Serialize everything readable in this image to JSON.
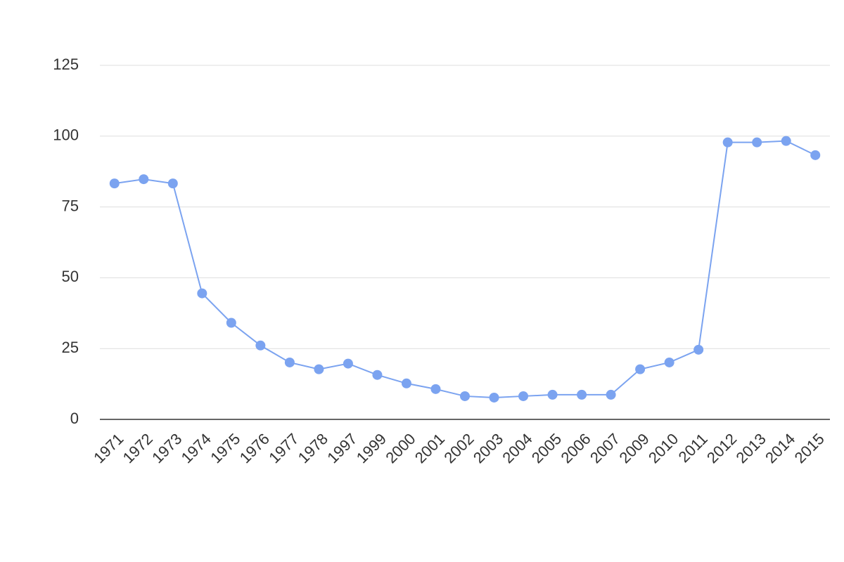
{
  "chart_data": {
    "type": "line",
    "categories": [
      "1971",
      "1972",
      "1973",
      "1974",
      "1975",
      "1976",
      "1977",
      "1978",
      "1997",
      "1999",
      "2000",
      "2001",
      "2002",
      "2003",
      "2004",
      "2005",
      "2006",
      "2007",
      "2009",
      "2010",
      "2011",
      "2012",
      "2013",
      "2014",
      "2015"
    ],
    "values": [
      83.3,
      84.8,
      83.3,
      44.5,
      34.1,
      26.1,
      20.1,
      17.7,
      19.7,
      15.7,
      12.7,
      10.7,
      8.2,
      7.7,
      8.2,
      8.7,
      8.7,
      8.7,
      17.7,
      20.1,
      24.6,
      97.8,
      97.8,
      98.3,
      93.3
    ],
    "color": "#7ba3f0",
    "ylim": [
      0,
      125
    ],
    "yticks": [
      0,
      25,
      50,
      75,
      100,
      125
    ],
    "grid": true
  }
}
